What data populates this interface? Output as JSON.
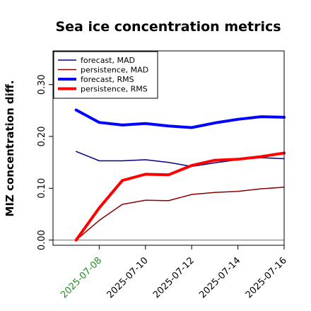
{
  "chart_data": {
    "type": "line",
    "title": "Sea ice concentration metrics",
    "ylabel": "MIZ concentration diff.",
    "xlabel": "",
    "x": [
      "2025-07-07",
      "2025-07-08",
      "2025-07-09",
      "2025-07-10",
      "2025-07-11",
      "2025-07-12",
      "2025-07-13",
      "2025-07-14",
      "2025-07-15",
      "2025-07-16"
    ],
    "xlim": [
      "2025-07-06",
      "2025-07-16"
    ],
    "ylim": [
      -0.01,
      0.365
    ],
    "yticks": [
      0.0,
      0.1,
      0.2,
      0.3
    ],
    "ytick_labels": [
      "0.00",
      "0.10",
      "0.20",
      "0.30"
    ],
    "xticks": [
      "2025-07-08",
      "2025-07-10",
      "2025-07-12",
      "2025-07-14",
      "2025-07-16"
    ],
    "xtick_labels": [
      "2025-07-08",
      "2025-07-10",
      "2025-07-12",
      "2025-07-14",
      "2025-07-16"
    ],
    "highlight_xtick": "2025-07-08",
    "highlight_color": "#228B22",
    "zero_line_color": "#808080",
    "legend_position": "top-left",
    "grid": false,
    "series": [
      {
        "name": "forecast,  MAD",
        "color": "#00008B",
        "width": 1.5,
        "values": [
          0.171,
          0.153,
          0.153,
          0.155,
          0.15,
          0.142,
          0.149,
          0.155,
          0.159,
          0.157
        ]
      },
      {
        "name": "persistence, MAD",
        "color": "#8B0000",
        "width": 1.5,
        "values": [
          0.0,
          0.038,
          0.069,
          0.077,
          0.076,
          0.088,
          0.092,
          0.094,
          0.099,
          0.102
        ]
      },
      {
        "name": "forecast,  RMS",
        "color": "#0000FF",
        "width": 4,
        "values": [
          0.251,
          0.227,
          0.222,
          0.225,
          0.22,
          0.217,
          0.226,
          0.233,
          0.238,
          0.237
        ]
      },
      {
        "name": "persistence, RMS",
        "color": "#FF0000",
        "width": 4,
        "values": [
          0.0,
          0.062,
          0.115,
          0.127,
          0.126,
          0.144,
          0.154,
          0.156,
          0.161,
          0.168
        ]
      }
    ]
  }
}
